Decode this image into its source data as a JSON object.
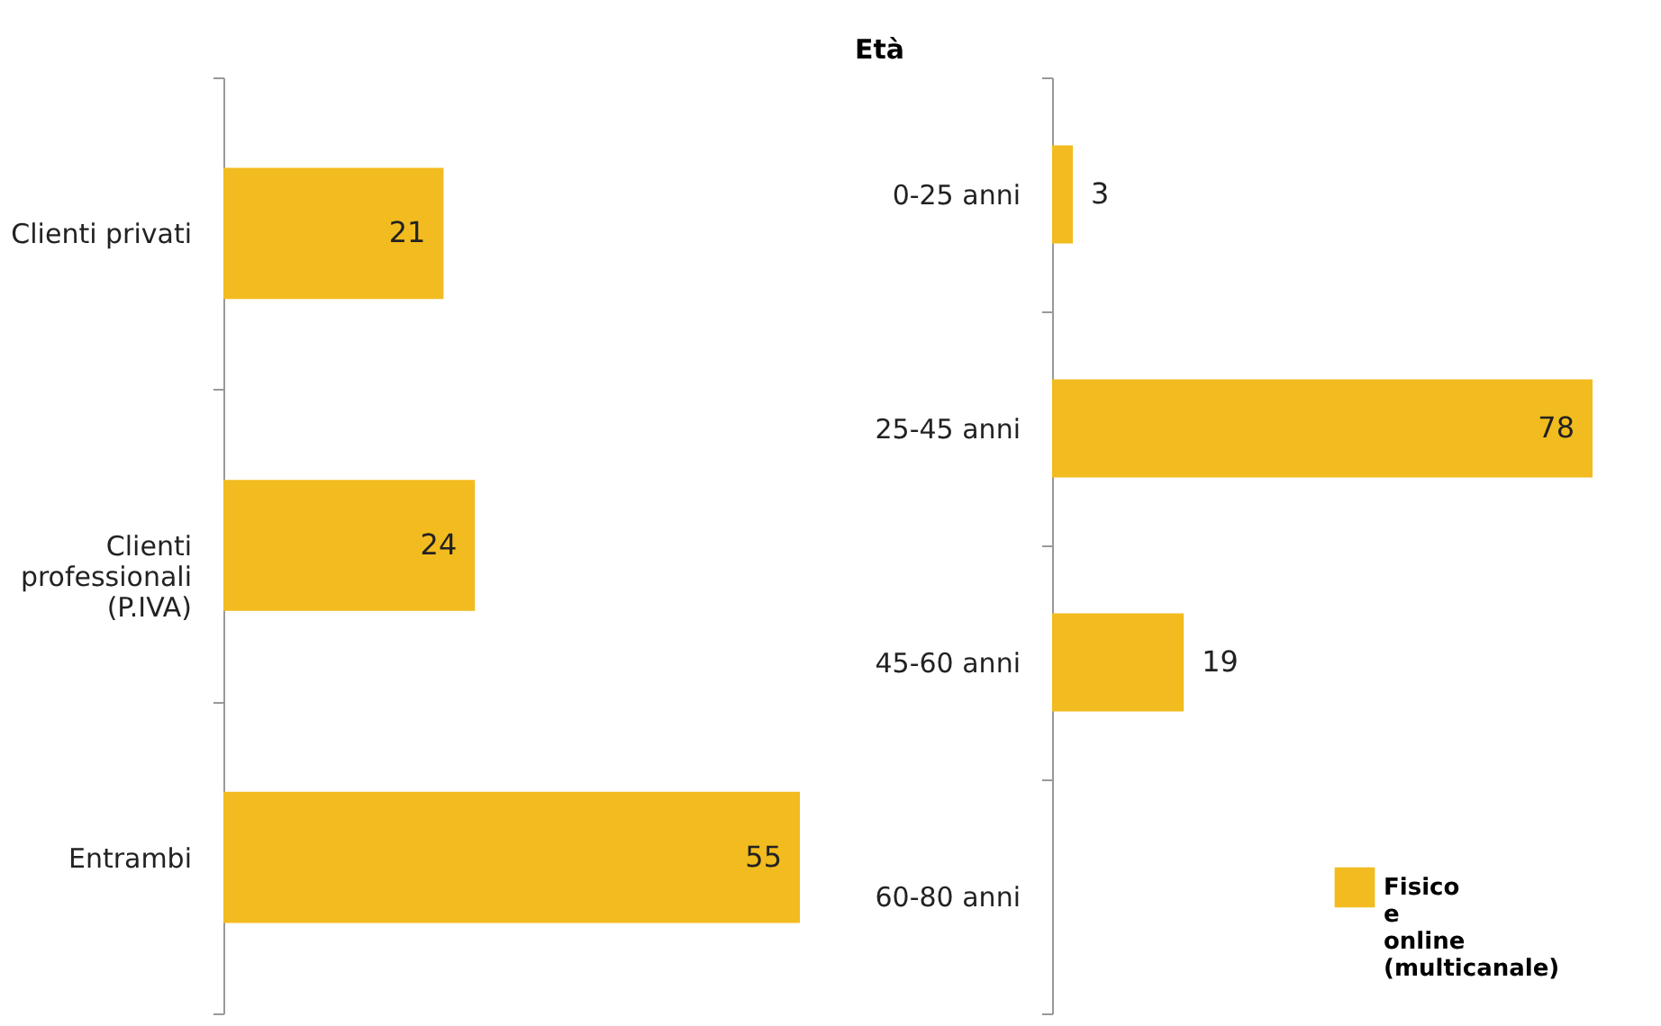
{
  "chart_data": [
    {
      "type": "bar",
      "orientation": "horizontal",
      "categories": [
        "Clienti privati",
        "Clienti professionali (P.IVA)",
        "Entrambi"
      ],
      "series": [
        {
          "color": "#f2bb1f",
          "values": [
            21,
            24,
            55
          ]
        }
      ],
      "data_labels": true,
      "grid": false,
      "legend": false
    },
    {
      "type": "bar",
      "orientation": "horizontal",
      "ylabel": "Età",
      "categories": [
        "0-25  anni",
        "25-45 anni",
        "45-60 anni",
        "60-80 anni"
      ],
      "series": [
        {
          "name": "Fisico e online (multicanale)",
          "color": "#f2bb1f",
          "values": [
            3,
            78,
            19,
            null
          ]
        }
      ],
      "data_labels": true,
      "grid": false,
      "legend": "bottom right"
    }
  ]
}
